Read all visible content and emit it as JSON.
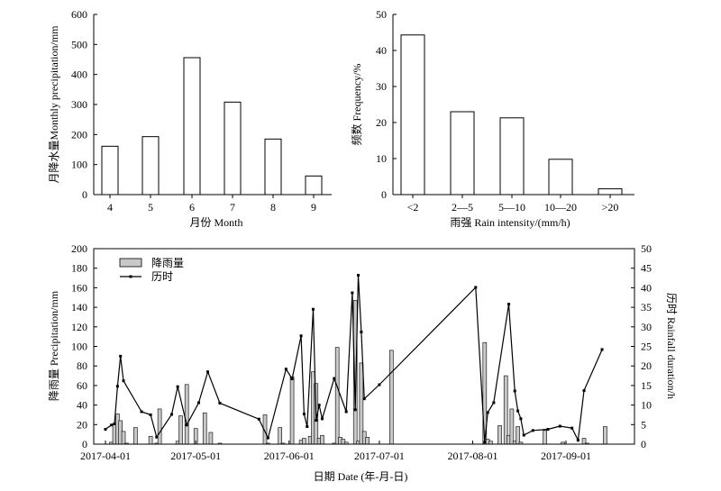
{
  "chart_data": [
    {
      "type": "bar",
      "categories": [
        "4",
        "5",
        "6",
        "7",
        "8",
        "9"
      ],
      "values": [
        161,
        193,
        456,
        308,
        185,
        62
      ],
      "xlabel": "月份 Month",
      "ylabel": "月降水量Monthly precipitation/mm",
      "ylim": [
        0,
        600
      ],
      "yticks": [
        "0",
        "100",
        "200",
        "300",
        "400",
        "500",
        "600"
      ]
    },
    {
      "type": "bar",
      "categories": [
        "<2",
        "2—5",
        "5—10",
        "10—20",
        ">20"
      ],
      "values": [
        44.3,
        23.0,
        21.3,
        9.8,
        1.6
      ],
      "xlabel": "雨强 Rain intensity/(mm/h)",
      "ylabel": "频数 Frequency/%",
      "ylim": [
        0,
        50
      ],
      "yticks": [
        "0",
        "10",
        "20",
        "30",
        "40",
        "50"
      ]
    },
    {
      "type": "bar+line",
      "xlabel": "日期 Date (年-月-日)",
      "ylabel": "降雨量 Precipitation/mm",
      "y2label": "历时 Rainfall duration/h",
      "xticks": [
        "2017-04-01",
        "2017-05-01",
        "2017-06-01",
        "2017-07-01",
        "2017-08-01",
        "2017-09-01"
      ],
      "yticks": [
        "0",
        "20",
        "40",
        "60",
        "80",
        "100",
        "120",
        "140",
        "160",
        "180",
        "200"
      ],
      "y2ticks": [
        "0",
        "5",
        "10",
        "15",
        "20",
        "25",
        "30",
        "35",
        "40",
        "45",
        "50"
      ],
      "ylim": [
        0,
        200
      ],
      "y2lim": [
        0,
        50
      ],
      "legend": {
        "position": "top-left",
        "items": [
          "降雨量",
          "历时"
        ]
      },
      "series": [
        {
          "name": "降雨量",
          "kind": "bar",
          "x": [
            2,
            3,
            4,
            5,
            6,
            7,
            10,
            15,
            17,
            18,
            24,
            25,
            27,
            30,
            33,
            35,
            38,
            53,
            54,
            58,
            59,
            62,
            65,
            66,
            68,
            69,
            70,
            71,
            72,
            76,
            77,
            78,
            79,
            80,
            83,
            84,
            85,
            86,
            87,
            95,
            126,
            127,
            128,
            131,
            133,
            134,
            135,
            136,
            137,
            138,
            146,
            152,
            159,
            160,
            166
          ],
          "values": [
            2,
            20,
            31,
            24,
            13,
            1,
            17,
            8,
            1,
            36,
            3,
            29,
            61,
            16,
            32,
            12,
            1,
            30,
            1,
            17,
            1,
            69,
            4,
            6,
            8,
            74,
            62,
            6,
            9,
            1,
            99,
            7,
            5,
            2,
            147,
            3,
            83,
            13,
            7,
            96,
            104,
            5,
            3,
            19,
            70,
            9,
            36,
            3,
            18,
            2,
            14,
            2,
            6,
            1,
            18
          ]
        },
        {
          "name": "历时",
          "kind": "line",
          "x": [
            0,
            2,
            3,
            4,
            5,
            6,
            12,
            15,
            17,
            22,
            24,
            27,
            31,
            34,
            38,
            51,
            54,
            60,
            62,
            65,
            66,
            67,
            69,
            70,
            71,
            72,
            76,
            80,
            82,
            83,
            84,
            85,
            86,
            91,
            123,
            126,
            127,
            129,
            134,
            136,
            137,
            138,
            139,
            142,
            147,
            151,
            155,
            157,
            159,
            165
          ],
          "values": [
            3.8,
            4.9,
            5.2,
            14.8,
            22.5,
            16.2,
            8.3,
            7.5,
            1.8,
            7.6,
            14.7,
            4.9,
            10.6,
            18.5,
            10.5,
            6.4,
            1.6,
            19.2,
            16.7,
            27.7,
            7.7,
            4.5,
            34.5,
            6.1,
            10,
            6.5,
            16.8,
            8.3,
            38.7,
            8.8,
            43.2,
            28.7,
            11.6,
            15.2,
            40.1,
            0.5,
            8.1,
            10.6,
            35.8,
            13.6,
            8.5,
            6.5,
            2.3,
            3.5,
            3.8,
            4.6,
            4.1,
            1,
            13.7,
            24.2
          ]
        }
      ]
    }
  ]
}
